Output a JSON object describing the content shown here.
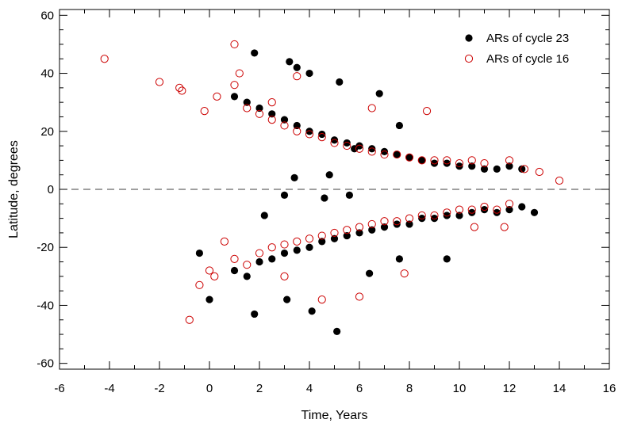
{
  "chart_data": {
    "type": "scatter",
    "xlabel": "Time, Years",
    "ylabel": "Latitude, degrees",
    "xlim": [
      -6,
      16
    ],
    "ylim": [
      -62,
      62
    ],
    "xticks": [
      -6,
      -4,
      -2,
      0,
      2,
      4,
      6,
      8,
      10,
      12,
      14,
      16
    ],
    "yticks": [
      -60,
      -40,
      -20,
      0,
      20,
      40,
      60
    ],
    "zero_line": true,
    "grid": false,
    "legend": {
      "position": "top-right"
    },
    "series": [
      {
        "name": "ARs of cycle 23",
        "marker": "filled-circle",
        "color": "#000000",
        "points": [
          [
            1.0,
            32
          ],
          [
            1.5,
            30
          ],
          [
            2.0,
            28
          ],
          [
            2.5,
            26
          ],
          [
            3.0,
            24
          ],
          [
            3.5,
            22
          ],
          [
            4.0,
            20
          ],
          [
            4.5,
            19
          ],
          [
            5.0,
            17
          ],
          [
            5.5,
            16
          ],
          [
            6.0,
            15
          ],
          [
            6.5,
            14
          ],
          [
            7.0,
            13
          ],
          [
            7.5,
            12
          ],
          [
            8.0,
            11
          ],
          [
            8.5,
            10
          ],
          [
            9.0,
            9
          ],
          [
            9.5,
            9
          ],
          [
            10.0,
            8
          ],
          [
            10.5,
            8
          ],
          [
            11.0,
            7
          ],
          [
            11.5,
            7
          ],
          [
            12.0,
            8
          ],
          [
            12.5,
            7
          ],
          [
            1.8,
            47
          ],
          [
            3.2,
            44
          ],
          [
            3.5,
            42
          ],
          [
            4.0,
            40
          ],
          [
            5.2,
            37
          ],
          [
            6.8,
            33
          ],
          [
            5.8,
            14
          ],
          [
            7.6,
            22
          ],
          [
            4.8,
            5
          ],
          [
            3.4,
            4
          ],
          [
            5.1,
            -49
          ],
          [
            4.1,
            -42
          ],
          [
            1.8,
            -43
          ],
          [
            0.0,
            -38
          ],
          [
            -0.4,
            -22
          ],
          [
            1.0,
            -28
          ],
          [
            1.5,
            -30
          ],
          [
            2.0,
            -25
          ],
          [
            2.5,
            -24
          ],
          [
            3.0,
            -22
          ],
          [
            3.5,
            -21
          ],
          [
            4.0,
            -20
          ],
          [
            4.5,
            -18
          ],
          [
            5.0,
            -17
          ],
          [
            5.5,
            -16
          ],
          [
            6.0,
            -15
          ],
          [
            6.5,
            -14
          ],
          [
            7.0,
            -13
          ],
          [
            7.5,
            -12
          ],
          [
            8.0,
            -12
          ],
          [
            8.5,
            -10
          ],
          [
            9.0,
            -10
          ],
          [
            9.5,
            -9
          ],
          [
            10.0,
            -9
          ],
          [
            10.5,
            -8
          ],
          [
            11.0,
            -7
          ],
          [
            11.5,
            -8
          ],
          [
            12.0,
            -7
          ],
          [
            12.5,
            -6
          ],
          [
            13.0,
            -8
          ],
          [
            2.2,
            -9
          ],
          [
            3.1,
            -38
          ],
          [
            6.4,
            -29
          ],
          [
            7.6,
            -24
          ],
          [
            9.5,
            -24
          ],
          [
            4.6,
            -3
          ],
          [
            5.6,
            -2
          ],
          [
            3.0,
            -2
          ]
        ]
      },
      {
        "name": "ARs of cycle 16",
        "marker": "open-circle",
        "color": "#cc0000",
        "points": [
          [
            -4.2,
            45
          ],
          [
            -2.0,
            37
          ],
          [
            -1.2,
            35
          ],
          [
            -1.1,
            34
          ],
          [
            -0.2,
            27
          ],
          [
            0.3,
            32
          ],
          [
            1.0,
            50
          ],
          [
            1.2,
            40
          ],
          [
            1.0,
            36
          ],
          [
            1.5,
            28
          ],
          [
            2.0,
            26
          ],
          [
            2.5,
            24
          ],
          [
            3.0,
            22
          ],
          [
            3.5,
            20
          ],
          [
            4.0,
            19
          ],
          [
            4.5,
            18
          ],
          [
            5.0,
            16
          ],
          [
            5.5,
            15
          ],
          [
            6.0,
            14
          ],
          [
            6.5,
            13
          ],
          [
            7.0,
            12
          ],
          [
            7.5,
            12
          ],
          [
            8.0,
            11
          ],
          [
            8.5,
            10
          ],
          [
            9.0,
            10
          ],
          [
            9.5,
            10
          ],
          [
            10.0,
            9
          ],
          [
            10.5,
            10
          ],
          [
            11.0,
            9
          ],
          [
            12.0,
            10
          ],
          [
            12.6,
            7
          ],
          [
            13.2,
            6
          ],
          [
            14.0,
            3
          ],
          [
            2.5,
            30
          ],
          [
            3.5,
            39
          ],
          [
            6.5,
            28
          ],
          [
            8.7,
            27
          ],
          [
            0.6,
            -18
          ],
          [
            0.0,
            -28
          ],
          [
            0.2,
            -30
          ],
          [
            1.0,
            -24
          ],
          [
            1.5,
            -26
          ],
          [
            2.0,
            -22
          ],
          [
            2.5,
            -20
          ],
          [
            3.0,
            -19
          ],
          [
            3.5,
            -18
          ],
          [
            4.0,
            -17
          ],
          [
            4.5,
            -16
          ],
          [
            5.0,
            -15
          ],
          [
            5.5,
            -14
          ],
          [
            6.0,
            -13
          ],
          [
            6.5,
            -12
          ],
          [
            7.0,
            -11
          ],
          [
            7.5,
            -11
          ],
          [
            8.0,
            -10
          ],
          [
            8.5,
            -9
          ],
          [
            9.0,
            -9
          ],
          [
            9.5,
            -8
          ],
          [
            10.0,
            -7
          ],
          [
            10.5,
            -7
          ],
          [
            11.0,
            -6
          ],
          [
            11.5,
            -7
          ],
          [
            12.0,
            -5
          ],
          [
            -0.8,
            -45
          ],
          [
            -0.4,
            -33
          ],
          [
            6.0,
            -37
          ],
          [
            7.8,
            -29
          ],
          [
            10.6,
            -13
          ],
          [
            11.8,
            -13
          ],
          [
            3.0,
            -30
          ],
          [
            4.5,
            -38
          ]
        ]
      }
    ]
  }
}
